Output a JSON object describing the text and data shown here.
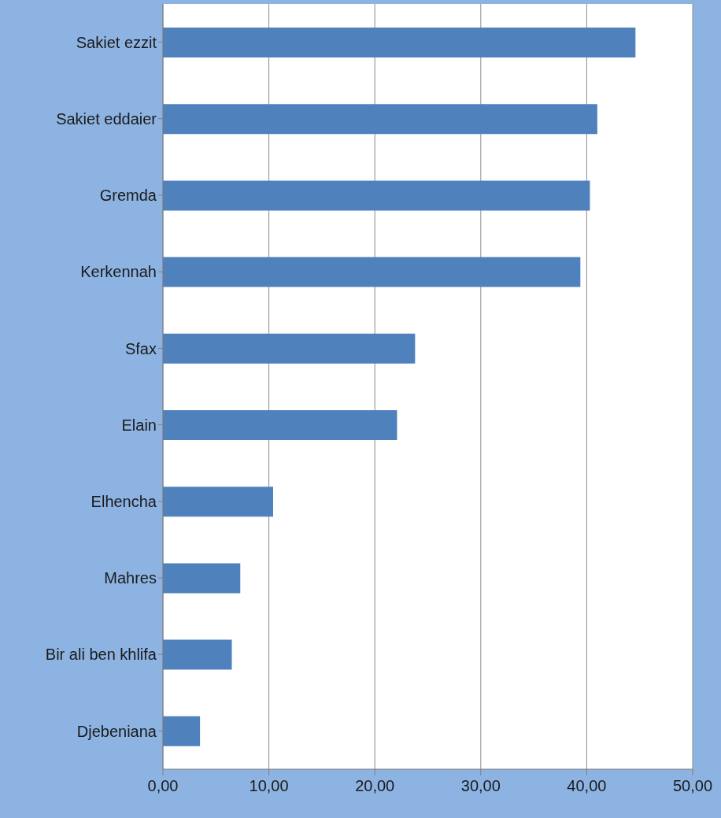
{
  "chart_data": {
    "type": "bar",
    "orientation": "horizontal",
    "categories": [
      "Sakiet ezzit",
      "Sakiet eddaier",
      "Gremda",
      "Kerkennah",
      "Sfax",
      "Elain",
      "Elhencha",
      "Mahres",
      "Bir ali ben khlifa",
      "Djebeniana"
    ],
    "values": [
      44.6,
      41.0,
      40.3,
      39.4,
      23.8,
      22.1,
      10.4,
      7.3,
      6.5,
      3.5
    ],
    "color": "#4f81bd",
    "xlim": [
      0,
      50
    ],
    "xticks": [
      {
        "value": 0,
        "label": "0,00"
      },
      {
        "value": 10,
        "label": "10,00"
      },
      {
        "value": 20,
        "label": "20,00"
      },
      {
        "value": 30,
        "label": "30,00"
      },
      {
        "value": 40,
        "label": "40,00"
      },
      {
        "value": 50,
        "label": "50,00"
      }
    ],
    "grid": "x"
  }
}
